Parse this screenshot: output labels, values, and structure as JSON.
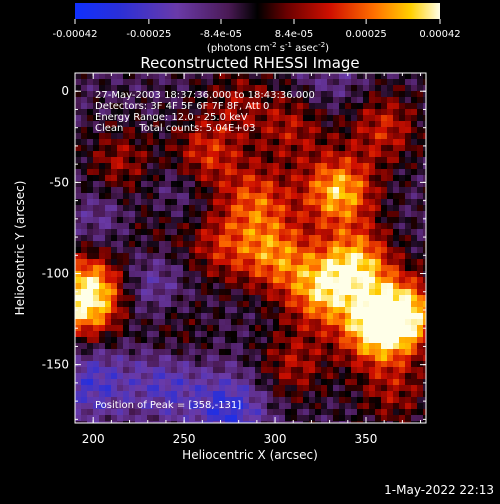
{
  "colorbar": {
    "ticks": [
      {
        "value": -0.00042,
        "label": "-0.00042"
      },
      {
        "value": -0.00025,
        "label": "-0.00025"
      },
      {
        "value": -8.4e-05,
        "label": "-8.4e-05"
      },
      {
        "value": 8.4e-05,
        "label": "8.4e-05"
      },
      {
        "value": 0.00025,
        "label": "0.00025"
      },
      {
        "value": 0.00042,
        "label": "0.00042"
      }
    ],
    "range": [
      -0.00042,
      0.00042
    ],
    "unit_label": {
      "prefix": "(photons cm",
      "sup1": "-2",
      "mid": " s",
      "sup2": "-1",
      "mid2": " asec",
      "sup3": "-2",
      "suffix": ")"
    }
  },
  "chart_data": {
    "type": "heatmap",
    "title": "Reconstructed RHESSI Image",
    "xlabel": "Heliocentric X (arcsec)",
    "ylabel": "Heliocentric Y (arcsec)",
    "xlim": [
      190,
      383
    ],
    "ylim": [
      -182,
      10
    ],
    "x_ticks": [
      200,
      250,
      300,
      350
    ],
    "y_ticks": [
      0,
      -50,
      -100,
      -150
    ],
    "colormap": "rhessi-blue-purple-red-yellow",
    "peak": [
      358,
      -131
    ],
    "annotations": [
      "27-May-2003 18:37:36.000 to 18:43:36.000",
      "Detectors: 3F 4F 5F 6F 7F 8F, Att 0",
      "Energy Range: 12.0 - 25.0 keV",
      "Clean     Total counts: 5.04E+03",
      "Position of Peak = [358,-131]"
    ],
    "blobs": [
      {
        "x": 335,
        "y": -55,
        "value": 0.0004
      },
      {
        "x": 345,
        "y": -95,
        "value": 0.00038
      },
      {
        "x": 325,
        "y": -110,
        "value": 0.00034
      },
      {
        "x": 355,
        "y": -130,
        "value": 0.00042
      },
      {
        "x": 372,
        "y": -122,
        "value": 0.0004
      },
      {
        "x": 300,
        "y": -90,
        "value": 0.0003
      },
      {
        "x": 290,
        "y": -60,
        "value": 0.00026
      },
      {
        "x": 262,
        "y": -35,
        "value": 0.00024
      },
      {
        "x": 270,
        "y": -85,
        "value": 0.0002
      },
      {
        "x": 215,
        "y": -40,
        "value": 0.00018
      },
      {
        "x": 195,
        "y": -118,
        "value": 0.00034
      },
      {
        "x": 200,
        "y": -105,
        "value": 0.00026
      },
      {
        "x": 360,
        "y": -20,
        "value": 0.00022
      },
      {
        "x": 310,
        "y": -20,
        "value": 0.00018
      },
      {
        "x": 230,
        "y": -75,
        "value": 0.00012
      },
      {
        "x": 310,
        "y": -150,
        "value": 0.00018
      },
      {
        "x": 365,
        "y": -165,
        "value": 0.00016
      },
      {
        "x": 245,
        "y": -135,
        "value": 0.0001
      },
      {
        "x": 280,
        "y": -5,
        "value": 0.00014
      }
    ],
    "dips": [
      {
        "x": 200,
        "y": -160,
        "value": -0.0002
      },
      {
        "x": 240,
        "y": -160,
        "value": -0.00018
      },
      {
        "x": 275,
        "y": -175,
        "value": -0.00024
      },
      {
        "x": 230,
        "y": -105,
        "value": -0.00014
      },
      {
        "x": 208,
        "y": -70,
        "value": -0.00012
      },
      {
        "x": 245,
        "y": -55,
        "value": -0.0001
      },
      {
        "x": 330,
        "y": 5,
        "value": -8e-05
      }
    ]
  },
  "footer": {
    "timestamp": "1-May-2022 22:13"
  }
}
